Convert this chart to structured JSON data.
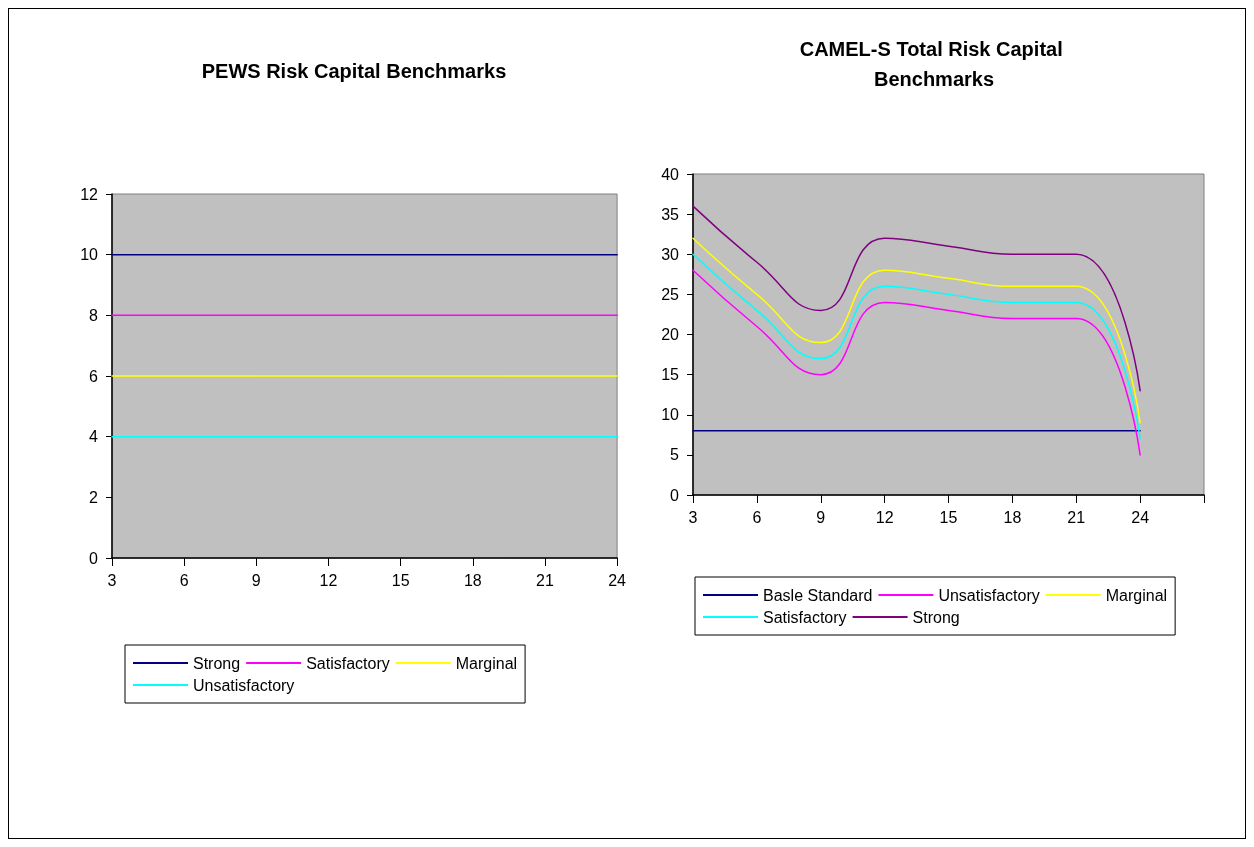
{
  "chart_data": [
    {
      "type": "line",
      "title": "PEWS Risk Capital Benchmarks",
      "categories": [
        "3",
        "6",
        "9",
        "12",
        "15",
        "18",
        "21",
        "24"
      ],
      "series": [
        {
          "name": "Strong",
          "color": "#000080",
          "values": [
            10,
            10,
            10,
            10,
            10,
            10,
            10,
            10
          ]
        },
        {
          "name": "Satisfactory",
          "color": "#ff00ff",
          "values": [
            8,
            8,
            8,
            8,
            8,
            8,
            8,
            8
          ]
        },
        {
          "name": "Marginal",
          "color": "#ffff00",
          "values": [
            6,
            6,
            6,
            6,
            6,
            6,
            6,
            6
          ]
        },
        {
          "name": "Unsatisfactory",
          "color": "#00ffff",
          "values": [
            4,
            4,
            4,
            4,
            4,
            4,
            4,
            4
          ]
        }
      ],
      "ylim": [
        0,
        12
      ],
      "yticks": [
        0,
        2,
        4,
        6,
        8,
        10,
        12
      ],
      "grid": false,
      "legend": "bottom",
      "marker": "none",
      "line_style": "solid"
    },
    {
      "type": "line",
      "title": "CAMEL-S Total Risk Capital Benchmarks",
      "categories": [
        "3",
        "6",
        "9",
        "12",
        "15",
        "18",
        "21",
        "24",
        null
      ],
      "series": [
        {
          "name": "Basle Standard",
          "color": "#000080",
          "values": [
            8,
            8,
            8,
            8,
            8,
            8,
            8,
            8,
            null
          ]
        },
        {
          "name": "Unsatisfactory",
          "color": "#ff00ff",
          "values": [
            28,
            21,
            15,
            24,
            23,
            22,
            22,
            5,
            null
          ]
        },
        {
          "name": "Marginal",
          "color": "#ffff00",
          "values": [
            32,
            25,
            19,
            28,
            27,
            26,
            26,
            9,
            null
          ]
        },
        {
          "name": "Satisfactory",
          "color": "#00ffff",
          "values": [
            30,
            23,
            17,
            26,
            25,
            24,
            24,
            7,
            null
          ]
        },
        {
          "name": "Strong",
          "color": "#800080",
          "values": [
            36,
            29,
            23,
            32,
            31,
            30,
            30,
            13,
            null
          ]
        }
      ],
      "ylim": [
        0,
        40
      ],
      "yticks": [
        0,
        5,
        10,
        15,
        20,
        25,
        30,
        35,
        40
      ],
      "grid": false,
      "legend": "bottom",
      "marker": "none",
      "line_style": "solid"
    }
  ]
}
